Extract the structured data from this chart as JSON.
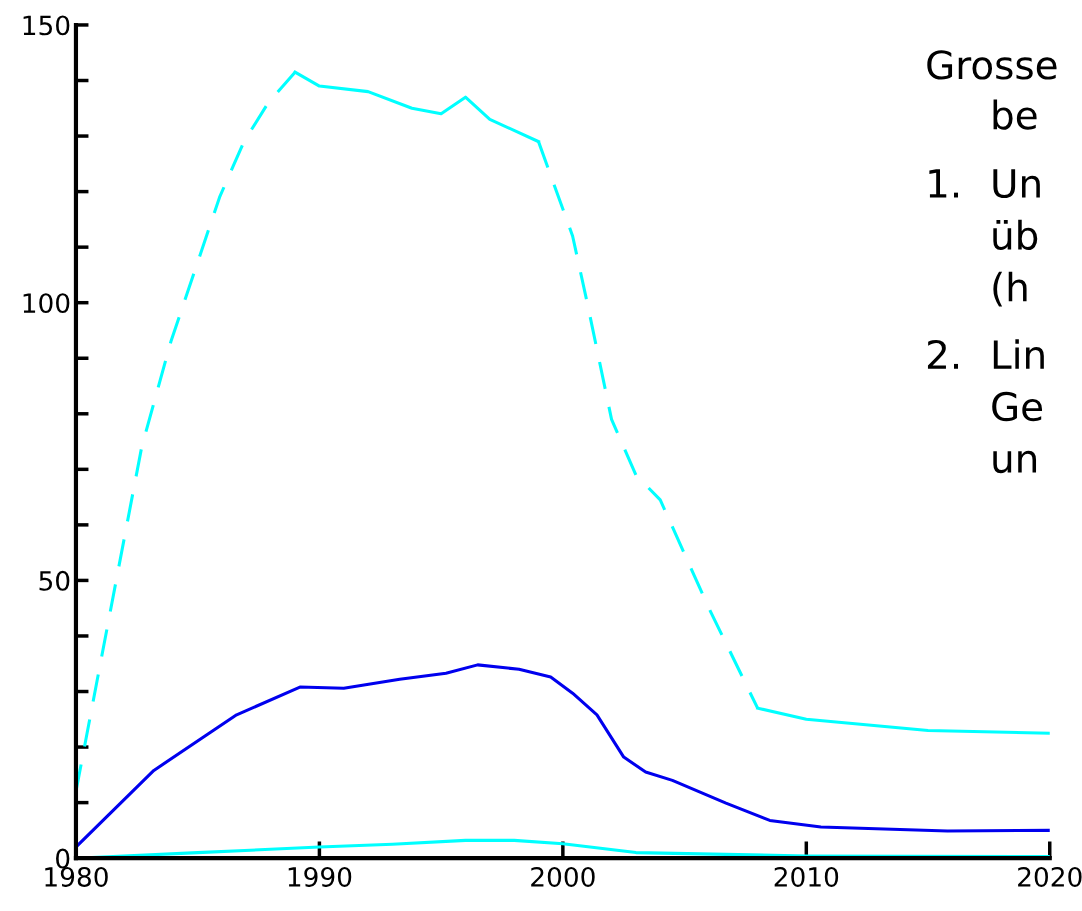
{
  "chart_data": {
    "type": "line",
    "xlim": [
      1980,
      2020
    ],
    "ylim": [
      0,
      150
    ],
    "xticks": [
      1980,
      1990,
      2000,
      2010,
      2020
    ],
    "yticks": [
      0,
      {
        "value": 10,
        "label": null
      },
      {
        "value": 20,
        "label": null
      },
      {
        "value": 30,
        "label": null
      },
      {
        "value": 40,
        "label": null
      },
      50,
      {
        "value": 60,
        "label": null
      },
      {
        "value": 70,
        "label": null
      },
      {
        "value": 80,
        "label": null
      },
      {
        "value": 90,
        "label": null
      },
      100,
      {
        "value": 110,
        "label": null
      },
      {
        "value": 120,
        "label": null
      },
      {
        "value": 130,
        "label": null
      },
      {
        "value": 140,
        "label": null
      },
      150
    ],
    "grid": false,
    "series": [
      {
        "color": "#00ffff",
        "line_style": "dashed",
        "x": [
          1980,
          1981,
          1982.7,
          1983.9,
          1984.9,
          1985.9,
          1986.9,
          1987.9,
          1989
        ],
        "values": [
          12,
          35,
          74,
          93,
          106,
          119,
          129,
          136,
          141.5
        ]
      },
      {
        "color": "#00ffff",
        "line_style": "solid",
        "x": [
          1989,
          1990,
          1992,
          1993.8,
          1995,
          1996,
          1997,
          1999
        ],
        "values": [
          141.5,
          139,
          138,
          135,
          134,
          137,
          133,
          129
        ]
      },
      {
        "color": "#00ffff",
        "line_style": "dashed",
        "x": [
          1999,
          2000.4,
          2001,
          2002,
          2003,
          2004,
          2006,
          2008
        ],
        "values": [
          129,
          112,
          100,
          79,
          69,
          64.5,
          45,
          27
        ]
      },
      {
        "color": "#00ffff",
        "line_style": "solid",
        "x": [
          2008,
          2010,
          2015,
          2020
        ],
        "values": [
          27,
          25,
          23,
          22.5
        ]
      },
      {
        "color": "#0000ee",
        "line_style": "solid",
        "x": [
          1980,
          1983.2,
          1986.6,
          1989.2,
          1991,
          1993.3,
          1995.2,
          1996.5,
          1998.2,
          1999.5,
          2000.4,
          2001.4,
          2002.5,
          2003.4,
          2004.5,
          2006.7,
          2008.5,
          2010.6,
          2015.8,
          2020
        ],
        "values": [
          2,
          15.8,
          25.8,
          30.8,
          30.6,
          32.2,
          33.3,
          34.8,
          34,
          32.6,
          29.7,
          25.8,
          18.2,
          15.5,
          14,
          9.9,
          6.8,
          5.6,
          4.9,
          5
        ]
      },
      {
        "color": "#00ffff",
        "line_style": "solid",
        "x": [
          1980,
          1985,
          1990,
          1993,
          1996,
          1998,
          2000,
          2003,
          2010,
          2020
        ],
        "values": [
          0,
          1,
          2,
          2.5,
          3.2,
          3.2,
          2.6,
          1,
          0.4,
          0.3
        ]
      }
    ],
    "annotations": [
      "Grosse",
      "be",
      "1.",
      "Un",
      "üb",
      "(h",
      "2.",
      "Lin",
      "Ge",
      "un"
    ]
  }
}
